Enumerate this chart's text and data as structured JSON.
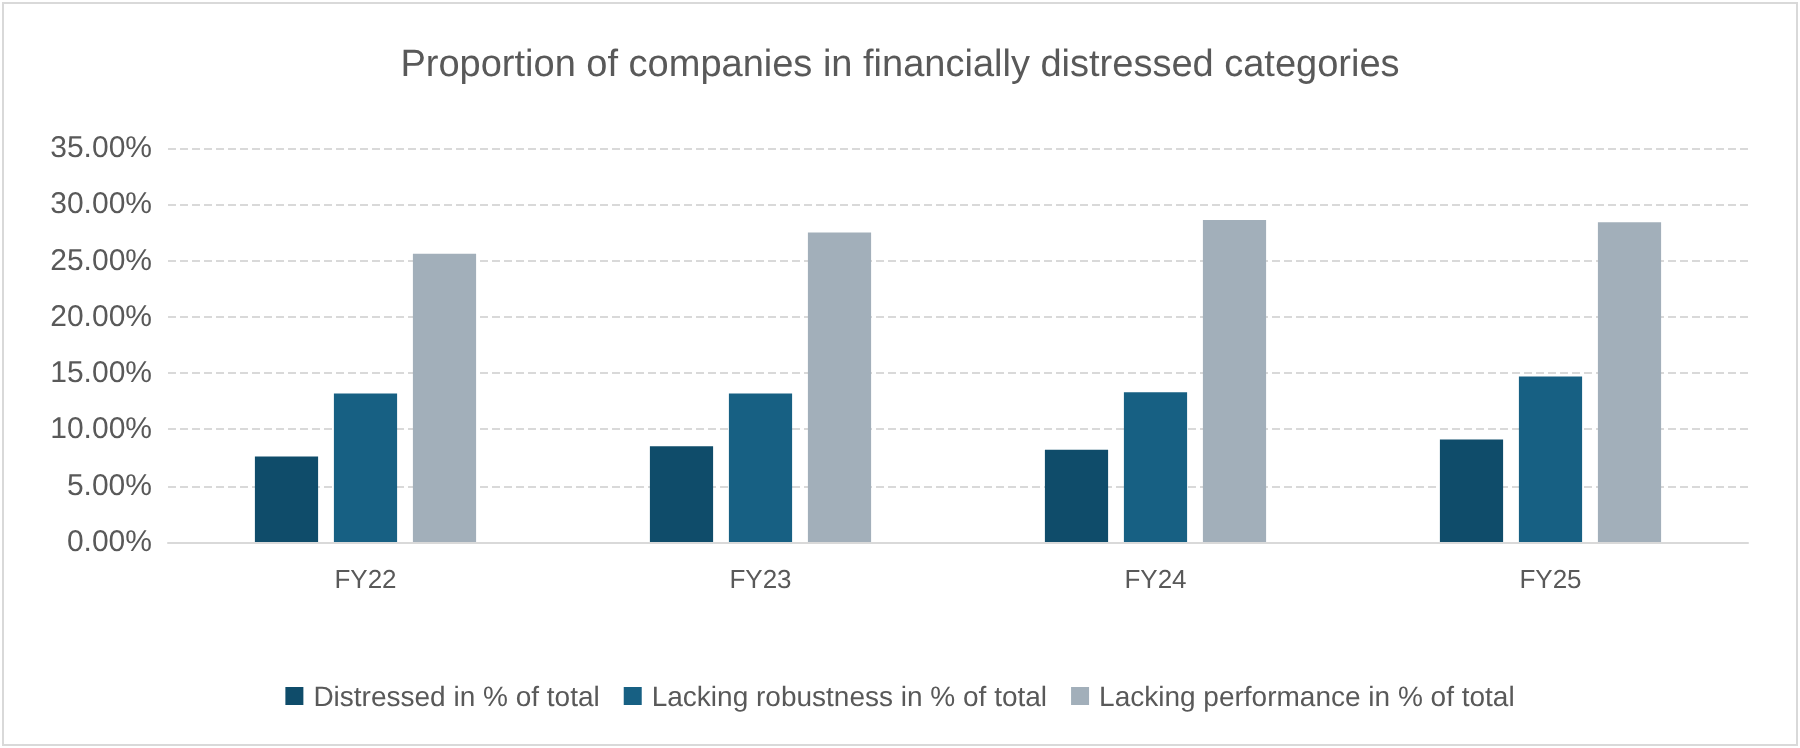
{
  "chart_data": {
    "type": "bar",
    "title": "Proportion of companies in financially distressed categories",
    "categories": [
      "FY22",
      "FY23",
      "FY24",
      "FY25"
    ],
    "series": [
      {
        "name": "Distressed in % of total",
        "color": "#0f4c6a",
        "values": [
          7.6,
          8.5,
          8.2,
          9.1
        ]
      },
      {
        "name": "Lacking robustness in % of total",
        "color": "#176083",
        "values": [
          13.2,
          13.2,
          13.3,
          14.7
        ]
      },
      {
        "name": "Lacking performance in % of total",
        "color": "#a2afba",
        "values": [
          25.6,
          27.5,
          28.6,
          28.4
        ]
      }
    ],
    "ylim": [
      0,
      35
    ],
    "yticks": [
      {
        "value": 0,
        "label": "0.00%"
      },
      {
        "value": 5,
        "label": "5.00%"
      },
      {
        "value": 10,
        "label": "10.00%"
      },
      {
        "value": 15,
        "label": "15.00%"
      },
      {
        "value": 20,
        "label": "20.00%"
      },
      {
        "value": 25,
        "label": "25.00%"
      },
      {
        "value": 30,
        "label": "30.00%"
      },
      {
        "value": 35,
        "label": "35.00%"
      }
    ],
    "grid": true,
    "legend": "bottom"
  }
}
